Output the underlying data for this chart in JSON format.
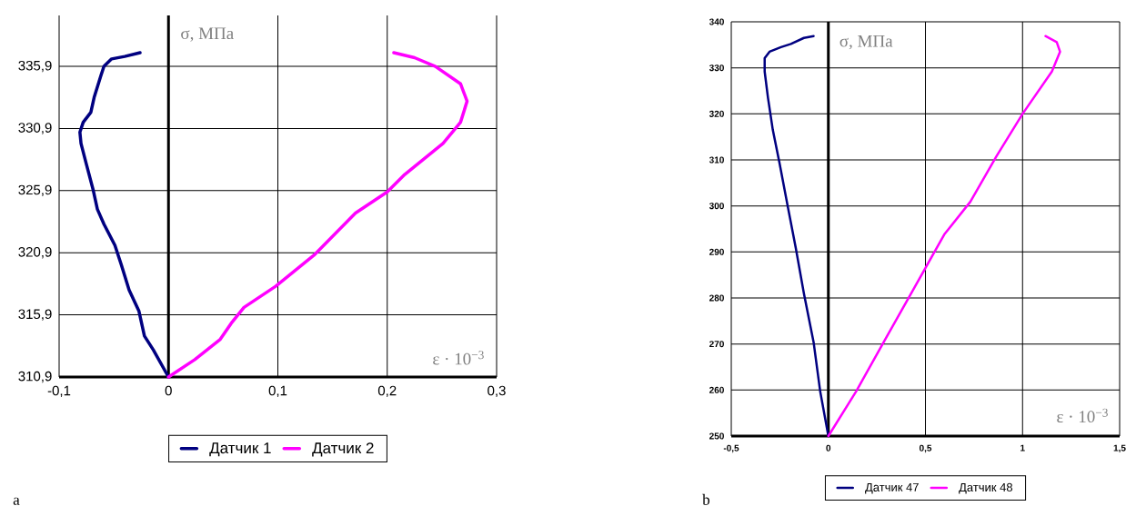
{
  "chart_data": [
    {
      "type": "line",
      "xlabel": "ε · 10$^{−3}$",
      "ylabel": "σ, МПа",
      "annotations": [
        "a"
      ],
      "grid": true,
      "legend": "bottom",
      "line_style": "solid",
      "xlim": [
        -0.1,
        0.3
      ],
      "ylim": [
        310.9,
        340
      ],
      "xticks": [
        {
          "value": -0.1,
          "label": "-0,1"
        },
        0,
        {
          "value": 0.1,
          "label": "0,1"
        },
        {
          "value": 0.2,
          "label": "0,2"
        },
        {
          "value": 0.3,
          "label": "0,3"
        }
      ],
      "yticks": [
        {
          "value": 310.9,
          "label": "310,9"
        },
        {
          "value": 315.9,
          "label": "315,9"
        },
        {
          "value": 320.9,
          "label": "320,9"
        },
        {
          "value": 325.9,
          "label": "325,9"
        },
        {
          "value": 330.9,
          "label": "330,9"
        },
        {
          "value": 335.9,
          "label": "335,9"
        }
      ],
      "series": [
        {
          "name": "Датчик 1",
          "color": "#000080",
          "x": [
            0,
            -0.014,
            -0.022,
            -0.027,
            -0.036,
            -0.043,
            -0.049,
            -0.059,
            -0.065,
            -0.069,
            -0.075,
            -0.08,
            -0.081,
            -0.078,
            -0.071,
            -0.068,
            -0.062,
            -0.059,
            -0.052,
            -0.04,
            -0.026
          ],
          "values": [
            310.9,
            313.1,
            314.2,
            316.2,
            317.9,
            319.9,
            321.5,
            323.2,
            324.4,
            326.0,
            328.0,
            329.7,
            330.6,
            331.4,
            332.2,
            333.4,
            335.1,
            335.9,
            336.5,
            336.7,
            337.0
          ]
        },
        {
          "name": "Датчик 2",
          "color": "#ff00ff",
          "x": [
            0,
            0.024,
            0.047,
            0.058,
            0.069,
            0.098,
            0.133,
            0.171,
            0.2,
            0.216,
            0.251,
            0.267,
            0.273,
            0.267,
            0.244,
            0.225,
            0.206
          ],
          "values": [
            310.9,
            312.3,
            313.9,
            315.3,
            316.5,
            318.2,
            320.7,
            324.1,
            325.8,
            327.2,
            329.7,
            331.4,
            333.1,
            334.5,
            335.9,
            336.6,
            337.0
          ]
        }
      ]
    },
    {
      "type": "line",
      "xlabel": "ε · 10$^{−3}$",
      "ylabel": "σ, МПа",
      "annotations": [
        "b"
      ],
      "grid": true,
      "legend": "bottom",
      "line_style": "solid",
      "xlim": [
        -0.5,
        1.5
      ],
      "ylim": [
        250,
        340
      ],
      "xticks": [
        {
          "value": -0.5,
          "label": "-0,5"
        },
        0,
        {
          "value": 0.5,
          "label": "0,5"
        },
        1,
        {
          "value": 1.5,
          "label": "1,5"
        }
      ],
      "yticks": [
        250,
        260,
        270,
        280,
        290,
        300,
        310,
        320,
        330,
        340
      ],
      "series": [
        {
          "name": "Датчик 47",
          "color": "#000080",
          "x": [
            0,
            -0.042,
            -0.076,
            -0.126,
            -0.168,
            -0.21,
            -0.252,
            -0.286,
            -0.311,
            -0.328,
            -0.328,
            -0.303,
            -0.244,
            -0.193,
            -0.126,
            -0.076
          ],
          "values": [
            250,
            259.7,
            270.4,
            281,
            290.9,
            300.1,
            309.4,
            316.5,
            323.5,
            329.2,
            332.1,
            333.5,
            334.5,
            335.2,
            336.5,
            336.9
          ]
        },
        {
          "name": "Датчик 48",
          "color": "#ff00ff",
          "x": [
            0,
            0.143,
            0.294,
            0.445,
            0.597,
            0.731,
            0.866,
            1.0,
            1.151,
            1.193,
            1.176,
            1.118
          ],
          "values": [
            250,
            259.7,
            271.1,
            282.4,
            293.8,
            300.9,
            310.8,
            320,
            329.2,
            333.5,
            335.6,
            336.9
          ]
        }
      ]
    }
  ]
}
